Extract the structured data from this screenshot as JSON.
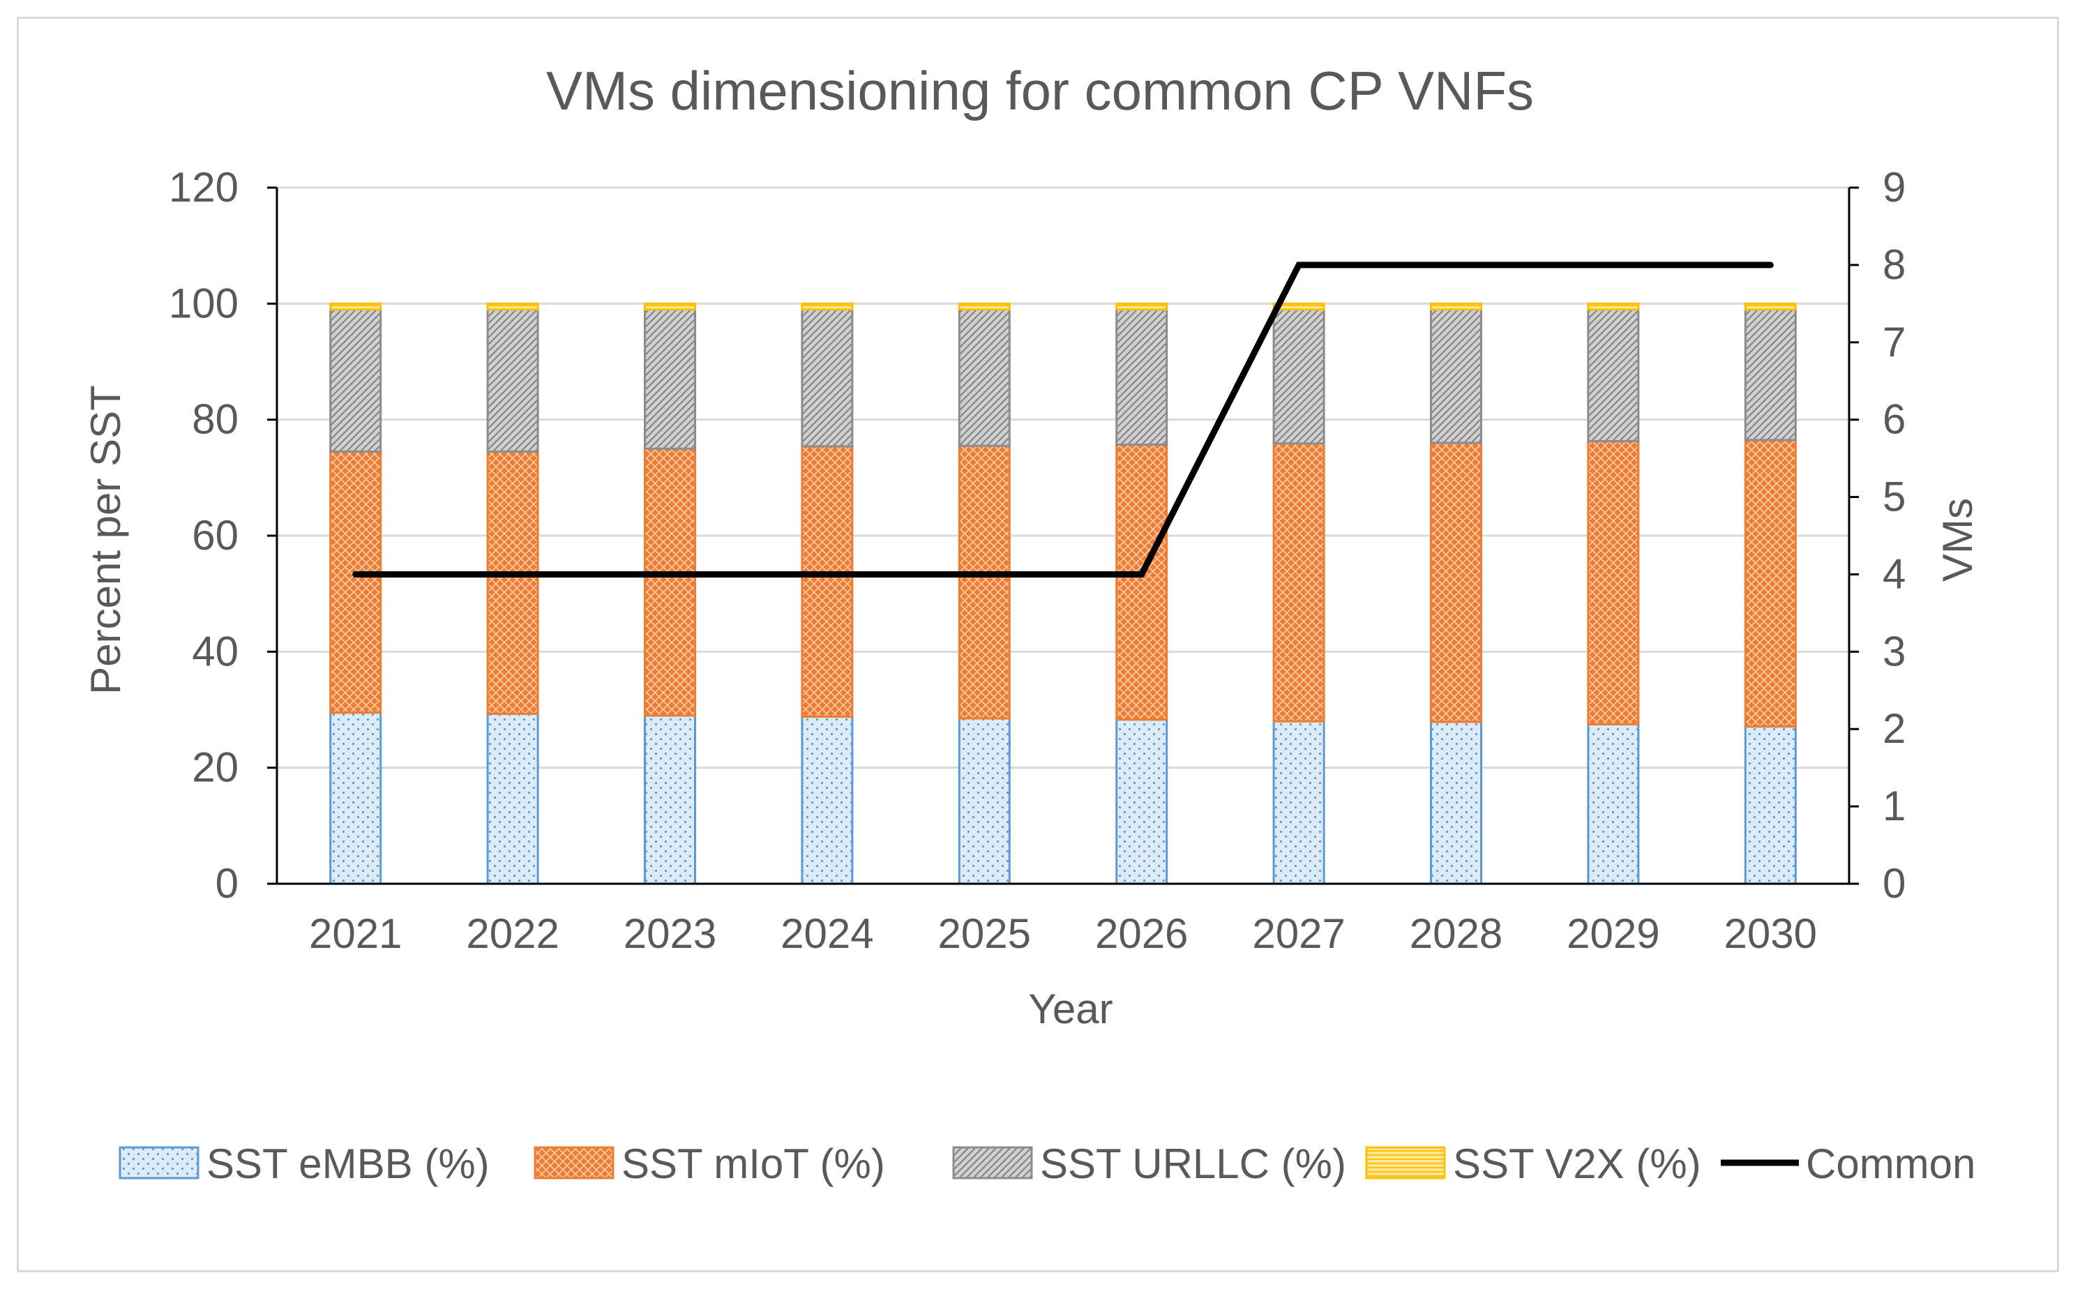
{
  "chart_data": {
    "type": "bar",
    "stacked": true,
    "title": "VMs dimensioning for common CP VNFs",
    "xlabel": "Year",
    "ylabel": "Percent per SST",
    "y2label": "VMs",
    "ylim": [
      0,
      120
    ],
    "y2lim": [
      0,
      9
    ],
    "yticks": [
      "0",
      "20",
      "40",
      "60",
      "80",
      "100",
      "120"
    ],
    "y2ticks": [
      "0",
      "1",
      "2",
      "3",
      "4",
      "5",
      "6",
      "7",
      "8",
      "9"
    ],
    "grid": true,
    "legend_position": "bottom",
    "categories": [
      "2021",
      "2022",
      "2023",
      "2024",
      "2025",
      "2026",
      "2027",
      "2028",
      "2029",
      "2030"
    ],
    "series": [
      {
        "name": "SST eMBB (%)",
        "kind": "bar",
        "color": "#5B9BD5",
        "fill": "#DDEBF7",
        "values": [
          29.5,
          29.3,
          29.0,
          28.8,
          28.5,
          28.3,
          28.0,
          27.9,
          27.5,
          27.1
        ]
      },
      {
        "name": "SST mIoT (%)",
        "kind": "bar",
        "color": "#ED7D31",
        "fill": "#F4B183",
        "values": [
          45.0,
          45.2,
          46.0,
          46.6,
          47.0,
          47.4,
          47.9,
          48.1,
          48.8,
          49.4
        ]
      },
      {
        "name": "SST URLLC (%)",
        "kind": "bar",
        "color": "#8C8C8C",
        "fill": "#BFBFBF",
        "values": [
          24.5,
          24.5,
          24.0,
          23.6,
          23.5,
          23.3,
          23.1,
          23.0,
          22.7,
          22.5
        ]
      },
      {
        "name": "SST V2X (%)",
        "kind": "bar",
        "color": "#FFC000",
        "fill": "#FFE699",
        "values": [
          1.0,
          1.0,
          1.0,
          1.0,
          1.0,
          1.0,
          1.0,
          1.0,
          1.0,
          1.0
        ]
      },
      {
        "name": "Common",
        "kind": "line",
        "axis": "right",
        "color": "#000000",
        "values": [
          4,
          4,
          4,
          4,
          4,
          4,
          8,
          8,
          8,
          8
        ]
      }
    ]
  }
}
